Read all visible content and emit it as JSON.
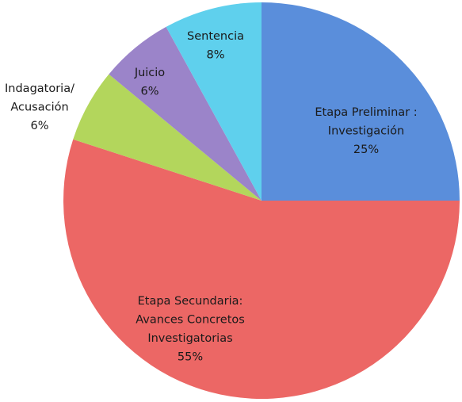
{
  "chart_data": {
    "type": "pie",
    "categories": [
      [
        "Etapa Preliminar :",
        "Investigación"
      ],
      [
        "Etapa Secundaria:",
        "Avances Concretos",
        "Investigatorias"
      ],
      [
        "Indagatoria/",
        "Acusación"
      ],
      [
        "Juicio"
      ],
      [
        "Sentencia"
      ]
    ],
    "values": [
      25,
      55,
      6,
      6,
      8
    ],
    "value_labels": [
      "25%",
      "55%",
      "6%",
      "6%",
      "8%"
    ],
    "colors": [
      "#5a8edb",
      "#ec6765",
      "#b3d65c",
      "#9b84c9",
      "#5fd0ed"
    ]
  }
}
